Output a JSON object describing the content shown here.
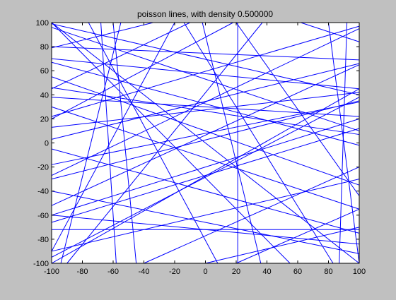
{
  "chart_data": {
    "type": "line",
    "title": "poisson lines, with density 0.500000",
    "xlabel": "",
    "ylabel": "",
    "xlim": [
      -100,
      100
    ],
    "ylim": [
      -100,
      100
    ],
    "x_ticks": [
      -100,
      -80,
      -60,
      -40,
      -20,
      0,
      20,
      40,
      60,
      80,
      100
    ],
    "y_ticks": [
      -100,
      -80,
      -60,
      -40,
      -20,
      0,
      20,
      40,
      60,
      80,
      100
    ],
    "grid": false,
    "legend": "none",
    "line_color": "#0000ff",
    "background": "#c0c0c0",
    "axes_background": "#ffffff",
    "series": [
      {
        "x": [
          -100,
          100
        ],
        "y": [
          99,
          40
        ]
      },
      {
        "x": [
          -100,
          -34
        ],
        "y": [
          79,
          100
        ]
      },
      {
        "x": [
          -100,
          100
        ],
        "y": [
          80,
          69
        ]
      },
      {
        "x": [
          -100,
          100
        ],
        "y": [
          67,
          -2
        ]
      },
      {
        "x": [
          -100,
          100
        ],
        "y": [
          46,
          7
        ]
      },
      {
        "x": [
          -100,
          -10
        ],
        "y": [
          45,
          100
        ]
      },
      {
        "x": [
          -100,
          100
        ],
        "y": [
          22,
          97
        ]
      },
      {
        "x": [
          -100,
          100
        ],
        "y": [
          13,
          42
        ]
      },
      {
        "x": [
          -100,
          100
        ],
        "y": [
          -18,
          34
        ]
      },
      {
        "x": [
          -100,
          100
        ],
        "y": [
          -27,
          95
        ]
      },
      {
        "x": [
          -100,
          100
        ],
        "y": [
          -66,
          12
        ]
      },
      {
        "x": [
          -100,
          100
        ],
        "y": [
          -72,
          -72
        ]
      },
      {
        "x": [
          -94,
          -55
        ],
        "y": [
          -100,
          100
        ]
      },
      {
        "x": [
          -90,
          37
        ],
        "y": [
          -100,
          100
        ]
      },
      {
        "x": [
          -76,
          8
        ],
        "y": [
          100,
          -100
        ]
      },
      {
        "x": [
          -68,
          -58
        ],
        "y": [
          100,
          -100
        ]
      },
      {
        "x": [
          -60,
          -45
        ],
        "y": [
          100,
          -100
        ]
      },
      {
        "x": [
          -100,
          55
        ],
        "y": [
          100,
          -100
        ]
      },
      {
        "x": [
          -2,
          36
        ],
        "y": [
          100,
          -100
        ]
      },
      {
        "x": [
          -14,
          83
        ],
        "y": [
          100,
          -100
        ]
      },
      {
        "x": [
          20,
          100
        ],
        "y": [
          100,
          -44
        ]
      },
      {
        "x": [
          21,
          21
        ],
        "y": [
          100,
          -100
        ]
      },
      {
        "x": [
          80,
          100
        ],
        "y": [
          100,
          -100
        ]
      },
      {
        "x": [
          62,
          100
        ],
        "y": [
          100,
          84
        ]
      },
      {
        "x": [
          92,
          87
        ],
        "y": [
          100,
          -100
        ]
      },
      {
        "x": [
          -100,
          100
        ],
        "y": [
          -52,
          65
        ]
      },
      {
        "x": [
          -100,
          100
        ],
        "y": [
          -95,
          38
        ]
      },
      {
        "x": [
          -100,
          100
        ],
        "y": [
          -30,
          35
        ]
      },
      {
        "x": [
          -100,
          100
        ],
        "y": [
          30,
          -55
        ]
      },
      {
        "x": [
          -100,
          100
        ],
        "y": [
          -60,
          -84
        ]
      },
      {
        "x": [
          -40,
          100
        ],
        "y": [
          -100,
          -20
        ]
      },
      {
        "x": [
          0,
          100
        ],
        "y": [
          -100,
          -70
        ]
      },
      {
        "x": [
          20,
          100
        ],
        "y": [
          -100,
          -55
        ]
      },
      {
        "x": [
          -100,
          18
        ],
        "y": [
          20,
          100
        ]
      },
      {
        "x": [
          -100,
          100
        ],
        "y": [
          3,
          66
        ]
      },
      {
        "x": [
          -100,
          100
        ],
        "y": [
          -60,
          20
        ]
      },
      {
        "x": [
          -100,
          100
        ],
        "y": [
          -100,
          45
        ]
      },
      {
        "x": [
          -100,
          100
        ],
        "y": [
          -90,
          -30
        ]
      },
      {
        "x": [
          -100,
          -20
        ],
        "y": [
          -90,
          100
        ]
      },
      {
        "x": [
          -100,
          100
        ],
        "y": [
          100,
          -100
        ]
      },
      {
        "x": [
          -100,
          100
        ],
        "y": [
          70,
          45
        ]
      },
      {
        "x": [
          -100,
          100
        ],
        "y": [
          -5,
          -75
        ]
      },
      {
        "x": [
          -100,
          100
        ],
        "y": [
          38,
          22
        ]
      },
      {
        "x": [
          -100,
          100
        ],
        "y": [
          96,
          10
        ]
      },
      {
        "x": [
          -100,
          100
        ],
        "y": [
          55,
          -35
        ]
      },
      {
        "x": [
          -100,
          100
        ],
        "y": [
          -40,
          -92
        ]
      }
    ]
  }
}
